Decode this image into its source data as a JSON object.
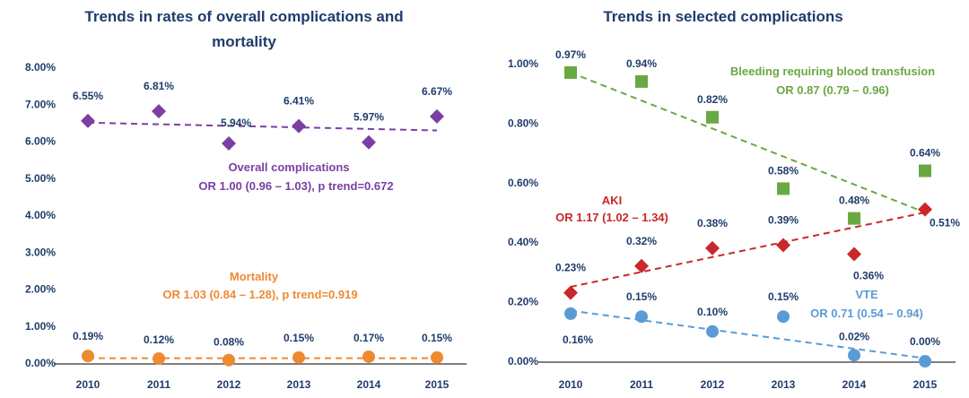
{
  "colors": {
    "title": "#1f3c6b",
    "text": "#1f3c6b",
    "overall": "#7b3fa3",
    "mortality": "#ee8a32",
    "bleeding": "#6aa843",
    "aki": "#c8282a",
    "vte": "#5b9bd5",
    "axis": "#555555"
  },
  "chart_data": [
    {
      "type": "scatter",
      "title_lines": [
        "Trends in rates of overall complications and",
        "mortality"
      ],
      "categories": [
        "2010",
        "2011",
        "2012",
        "2013",
        "2014",
        "2015"
      ],
      "ylim": [
        0,
        8
      ],
      "yticks": [
        0,
        1,
        2,
        3,
        4,
        5,
        6,
        7,
        8
      ],
      "ytick_labels": [
        "0.00%",
        "1.00%",
        "2.00%",
        "3.00%",
        "4.00%",
        "5.00%",
        "6.00%",
        "7.00%",
        "8.00%"
      ],
      "grid": false,
      "series": [
        {
          "key": "overall",
          "marker": "diamond",
          "values": [
            6.55,
            6.81,
            5.94,
            6.41,
            5.97,
            6.67
          ],
          "labels": [
            "6.55%",
            "6.81%",
            "5.94%",
            "6.41%",
            "5.97%",
            "6.67%"
          ],
          "trend": [
            6.5,
            6.29
          ],
          "annotation": [
            "Overall complications",
            "OR 1.00 (0.96 – 1.03), p trend=0.672"
          ]
        },
        {
          "key": "mortality",
          "marker": "circle",
          "values": [
            0.19,
            0.12,
            0.08,
            0.15,
            0.17,
            0.15
          ],
          "labels": [
            "0.19%",
            "0.12%",
            "0.08%",
            "0.15%",
            "0.17%",
            "0.15%"
          ],
          "trend": [
            0.13,
            0.13
          ],
          "annotation": [
            "Mortality",
            "OR 1.03 (0.84 – 1.28), p trend=0.919"
          ]
        }
      ]
    },
    {
      "type": "scatter",
      "title_lines": [
        "Trends in selected complications"
      ],
      "categories": [
        "2010",
        "2011",
        "2012",
        "2013",
        "2014",
        "2015"
      ],
      "ylim": [
        0,
        1.0
      ],
      "yticks": [
        0,
        0.2,
        0.4,
        0.6,
        0.8,
        1.0
      ],
      "ytick_labels": [
        "0.00%",
        "0.20%",
        "0.40%",
        "0.60%",
        "0.80%",
        "1.00%"
      ],
      "grid": false,
      "series": [
        {
          "key": "bleeding",
          "marker": "square",
          "values": [
            0.97,
            0.94,
            0.82,
            0.58,
            0.48,
            0.64
          ],
          "labels": [
            "0.97%",
            "0.94%",
            "0.82%",
            "0.58%",
            "0.48%",
            "0.64%"
          ],
          "trend": [
            0.97,
            0.5
          ],
          "annotation": [
            "Bleeding requiring blood transfusion",
            "OR 0.87 (0.79 – 0.96)"
          ]
        },
        {
          "key": "aki",
          "marker": "diamond",
          "values": [
            0.23,
            0.32,
            0.38,
            0.39,
            0.36,
            0.51
          ],
          "labels": [
            "0.23%",
            "0.32%",
            "0.38%",
            "0.39%",
            "0.36%",
            "0.51%"
          ],
          "trend": [
            0.25,
            0.5
          ],
          "annotation": [
            "AKI",
            "OR 1.17 (1.02 – 1.34)"
          ]
        },
        {
          "key": "vte",
          "marker": "circle",
          "values": [
            0.16,
            0.15,
            0.1,
            0.15,
            0.02,
            0.0
          ],
          "labels": [
            "0.16%",
            "0.15%",
            "0.10%",
            "0.15%",
            "0.02%",
            "0.00%"
          ],
          "trend": [
            0.17,
            0.01
          ],
          "annotation": [
            "VTE",
            "OR 0.71 (0.54 – 0.94)"
          ]
        }
      ]
    }
  ]
}
